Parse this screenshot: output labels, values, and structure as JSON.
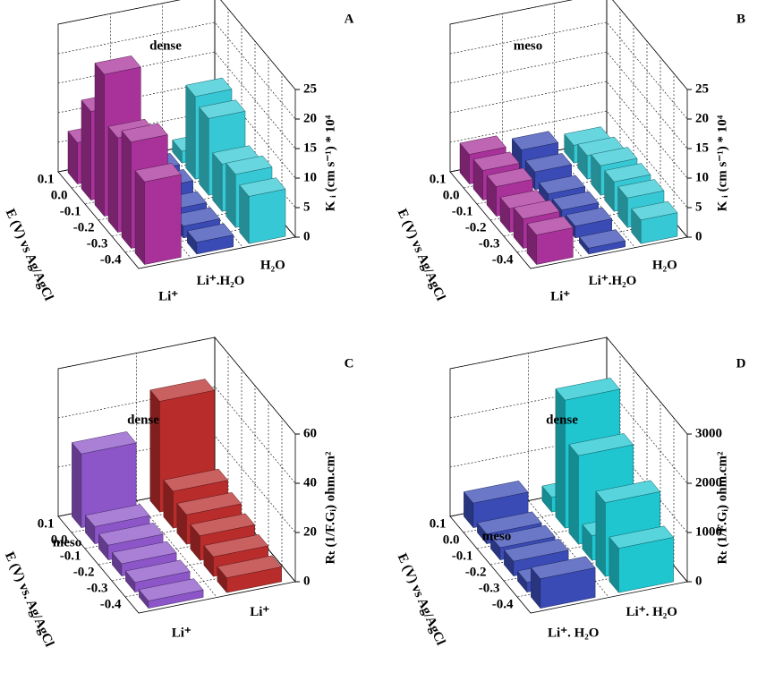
{
  "chart_data": [
    {
      "type": "bar3d",
      "panel": "A",
      "annotations": [
        "dense"
      ],
      "xlabel": "E (V) vs Ag/AgCl",
      "ylabel": "K ᵢ (cm s⁻¹) * 10⁴",
      "categories": [
        "0.1",
        "0.0",
        "-0.1",
        "-0.2",
        "-0.3",
        "-0.4"
      ],
      "series": [
        {
          "name": "Li⁺",
          "color": "#a8329a",
          "values": [
            7,
            15,
            24,
            16,
            18,
            14
          ]
        },
        {
          "name": "Li⁺.H₂O",
          "color": "#3a4bb5",
          "values": [
            2,
            3,
            3,
            2,
            2,
            2
          ]
        },
        {
          "name": "H₂O",
          "color": "#36c8d4",
          "values": [
            2,
            14,
            13,
            8,
            9,
            8
          ]
        }
      ],
      "ylim": [
        0,
        25
      ],
      "yticks": [
        0,
        5,
        10,
        15,
        20,
        25
      ]
    },
    {
      "type": "bar3d",
      "panel": "B",
      "annotations": [
        "meso"
      ],
      "xlabel": "E (V) vs Ag/AgCl",
      "ylabel": "K ᵢ (cm s⁻¹) * 10⁴",
      "categories": [
        "0.1",
        "0.0",
        "-0.1",
        "-0.2",
        "-0.3",
        "-0.4"
      ],
      "series": [
        {
          "name": "Li⁺",
          "color": "#a8329a",
          "values": [
            5,
            5,
            5,
            4,
            5,
            5
          ]
        },
        {
          "name": "Li⁺.H₂O",
          "color": "#3a4bb5",
          "values": [
            4,
            3,
            2,
            2,
            2,
            1
          ]
        },
        {
          "name": "H₂O",
          "color": "#36c8d4",
          "values": [
            3,
            4,
            5,
            5,
            5,
            4
          ]
        }
      ],
      "ylim": [
        0,
        25
      ],
      "yticks": [
        0,
        5,
        10,
        15,
        20,
        25
      ]
    },
    {
      "type": "bar3d",
      "panel": "C",
      "annotations": [
        "meso",
        "dense"
      ],
      "xlabel": "E (V) vs. Ag/AgCl",
      "ylabel": "Rₜ (1/F.Gᵢ) ohm.cm²",
      "categories": [
        "0.1",
        "0.0",
        "-0.1",
        "-0.2",
        "-0.3",
        "-0.4"
      ],
      "series": [
        {
          "name": "Li⁺",
          "color": "#8c55c8",
          "values": [
            30,
            7,
            6,
            5,
            4,
            3
          ]
        },
        {
          "name": "Li⁺",
          "color": "#b82c2c",
          "values": [
            45,
            15,
            12,
            10,
            8,
            6
          ]
        }
      ],
      "ylim": [
        0,
        60
      ],
      "yticks": [
        0,
        20,
        40,
        60
      ]
    },
    {
      "type": "bar3d",
      "panel": "D",
      "annotations": [
        "meso",
        "dense"
      ],
      "xlabel": "E (V) vs Ag/AgCl",
      "ylabel": "Rₜ (1/F.Gᵢ) ohm.cm²",
      "categories": [
        "0.1",
        "0.0",
        "-0.1",
        "-0.2",
        "-0.3",
        "-0.4"
      ],
      "series": [
        {
          "name": "Li⁺. H₂O",
          "color": "#3a4bb5",
          "values": [
            500,
            200,
            250,
            300,
            200,
            600
          ]
        },
        {
          "name": "Li⁺. H₂O",
          "color": "#1fc6d0",
          "values": [
            300,
            2600,
            1800,
            500,
            1500,
            900
          ]
        }
      ],
      "ylim": [
        0,
        3000
      ],
      "yticks": [
        0,
        1000,
        2000,
        3000
      ]
    }
  ]
}
